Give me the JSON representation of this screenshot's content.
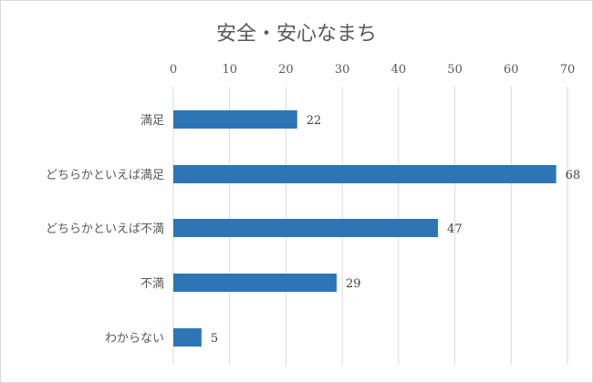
{
  "chart_data": {
    "type": "bar",
    "orientation": "horizontal",
    "title": "安全・安心なまち",
    "categories": [
      "満足",
      "どちらかといえば満足",
      "どちらかといえば不満",
      "不満",
      "わからない"
    ],
    "values": [
      22,
      68,
      47,
      29,
      5
    ],
    "xlim": [
      0,
      70
    ],
    "ticks": [
      0,
      10,
      20,
      30,
      40,
      50,
      60,
      70
    ],
    "axis_position": "top",
    "grid": true,
    "legend": "none",
    "bar_color": "#2e75b6"
  }
}
